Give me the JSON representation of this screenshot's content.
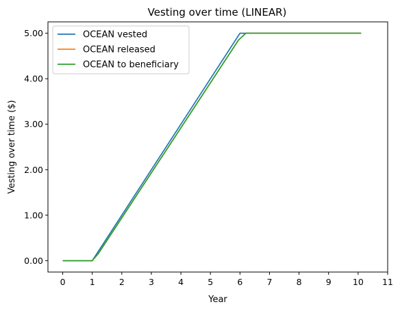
{
  "chart_data": {
    "type": "line",
    "title": "Vesting over time (LINEAR)",
    "xlabel": "Year",
    "ylabel": "Vesting over time ($)",
    "xlim": [
      -0.5,
      11
    ],
    "ylim": [
      -0.25,
      5.25
    ],
    "xticks": [
      0,
      1,
      2,
      3,
      4,
      5,
      6,
      7,
      8,
      9,
      10,
      11
    ],
    "xtick_labels": [
      "0",
      "1",
      "2",
      "3",
      "4",
      "5",
      "6",
      "7",
      "8",
      "9",
      "10",
      "11"
    ],
    "yticks": [
      0,
      1,
      2,
      3,
      4,
      5
    ],
    "ytick_labels": [
      "0.00",
      "1.00",
      "2.00",
      "3.00",
      "4.00",
      "5.00"
    ],
    "grid": false,
    "legend_position": "top-left",
    "series": [
      {
        "name": "OCEAN vested",
        "color": "#1f77b4",
        "x": [
          0,
          1,
          6,
          10.1
        ],
        "y": [
          0,
          0,
          5,
          5
        ]
      },
      {
        "name": "OCEAN released",
        "color": "#ff7f0e",
        "x": [
          0,
          1,
          1.2,
          5.95,
          6.2,
          10.1
        ],
        "y": [
          0,
          0,
          0.15,
          4.85,
          5,
          5
        ]
      },
      {
        "name": "OCEAN to beneficiary",
        "color": "#2ca02c",
        "x": [
          0,
          1,
          1.2,
          5.95,
          6.2,
          10.1
        ],
        "y": [
          0,
          0,
          0.15,
          4.85,
          5,
          5
        ]
      }
    ]
  }
}
